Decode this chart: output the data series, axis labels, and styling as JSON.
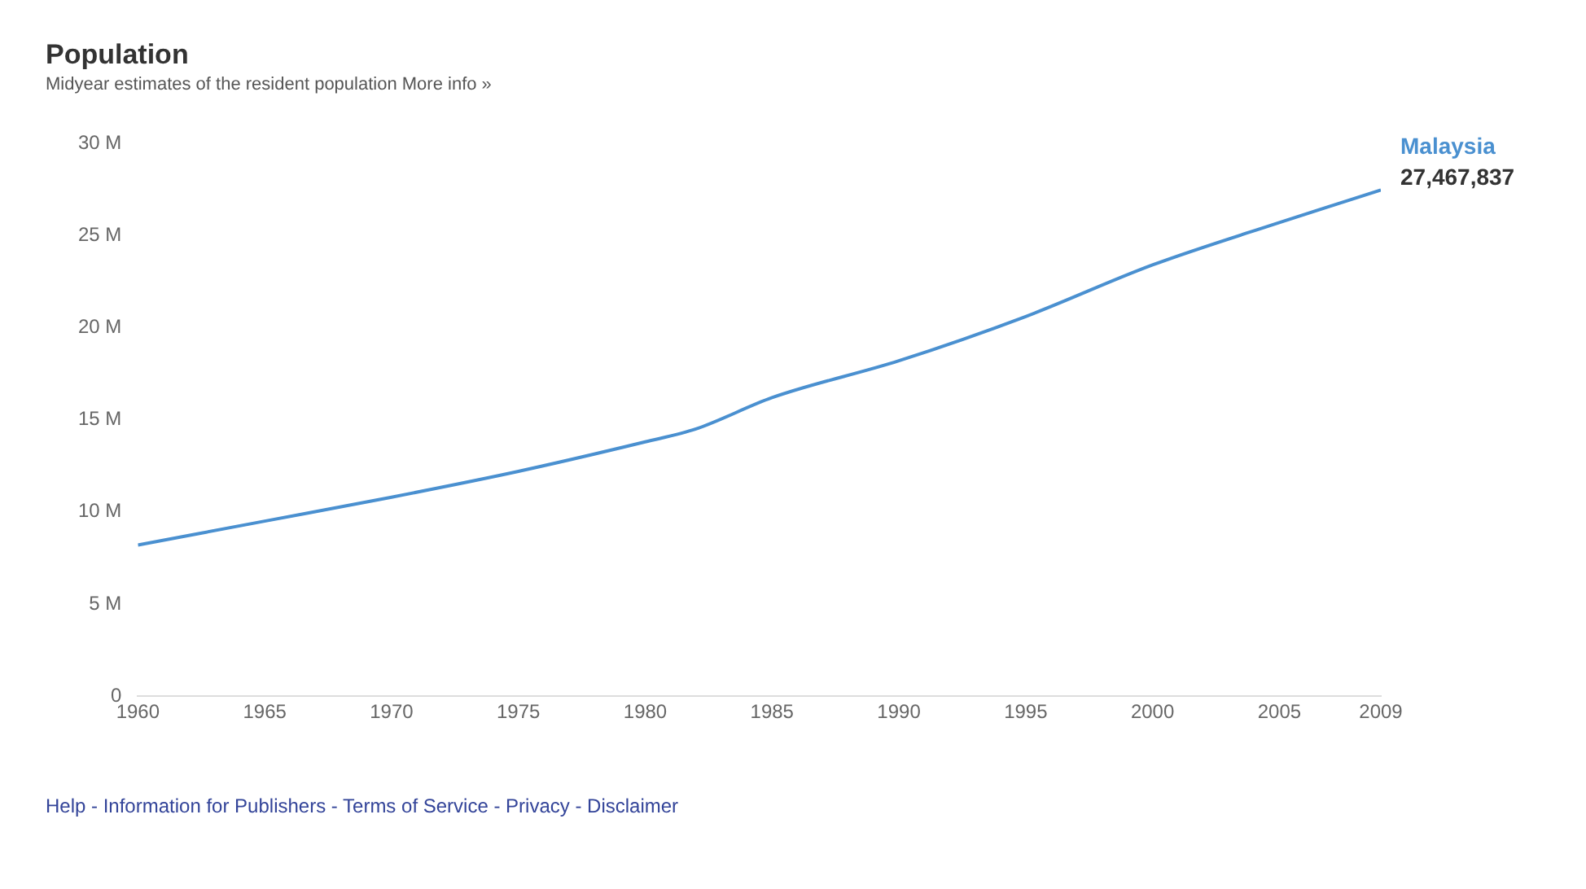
{
  "chart_data": {
    "type": "line",
    "title": "Population",
    "subtitle": "Midyear estimates of the resident population  More info »",
    "x": [
      1960,
      1965,
      1970,
      1975,
      1980,
      1982,
      1985,
      1990,
      1995,
      2000,
      2005,
      2009
    ],
    "series": [
      {
        "name": "Malaysia",
        "color": "#4a90d0",
        "values": [
          8200000,
          9500000,
          10800000,
          12200000,
          13800000,
          14500000,
          16200000,
          18200000,
          20600000,
          23400000,
          25700000,
          27467837
        ],
        "value_labels": [
          null,
          null,
          null,
          null,
          null,
          null,
          null,
          null,
          null,
          null,
          null,
          "27,467,837"
        ]
      }
    ],
    "xlim": [
      1960,
      2009
    ],
    "xticks": [
      1960,
      1965,
      1970,
      1975,
      1980,
      1985,
      1990,
      1995,
      2000,
      2005,
      2009
    ],
    "ylim": [
      0,
      30000000
    ],
    "yticks": [
      0,
      {
        "value": 5000000,
        "label": "5 M"
      },
      {
        "value": 10000000,
        "label": "10 M"
      },
      {
        "value": 15000000,
        "label": "15 M"
      },
      {
        "value": 20000000,
        "label": "20 M"
      },
      {
        "value": 25000000,
        "label": "25 M"
      },
      {
        "value": 30000000,
        "label": "30 M"
      }
    ],
    "grid": false,
    "legend": false,
    "marker": "none",
    "line_style": "solid",
    "annotations": [
      "Help - Information for Publishers - Terms of Service - Privacy - Disclaimer"
    ]
  }
}
